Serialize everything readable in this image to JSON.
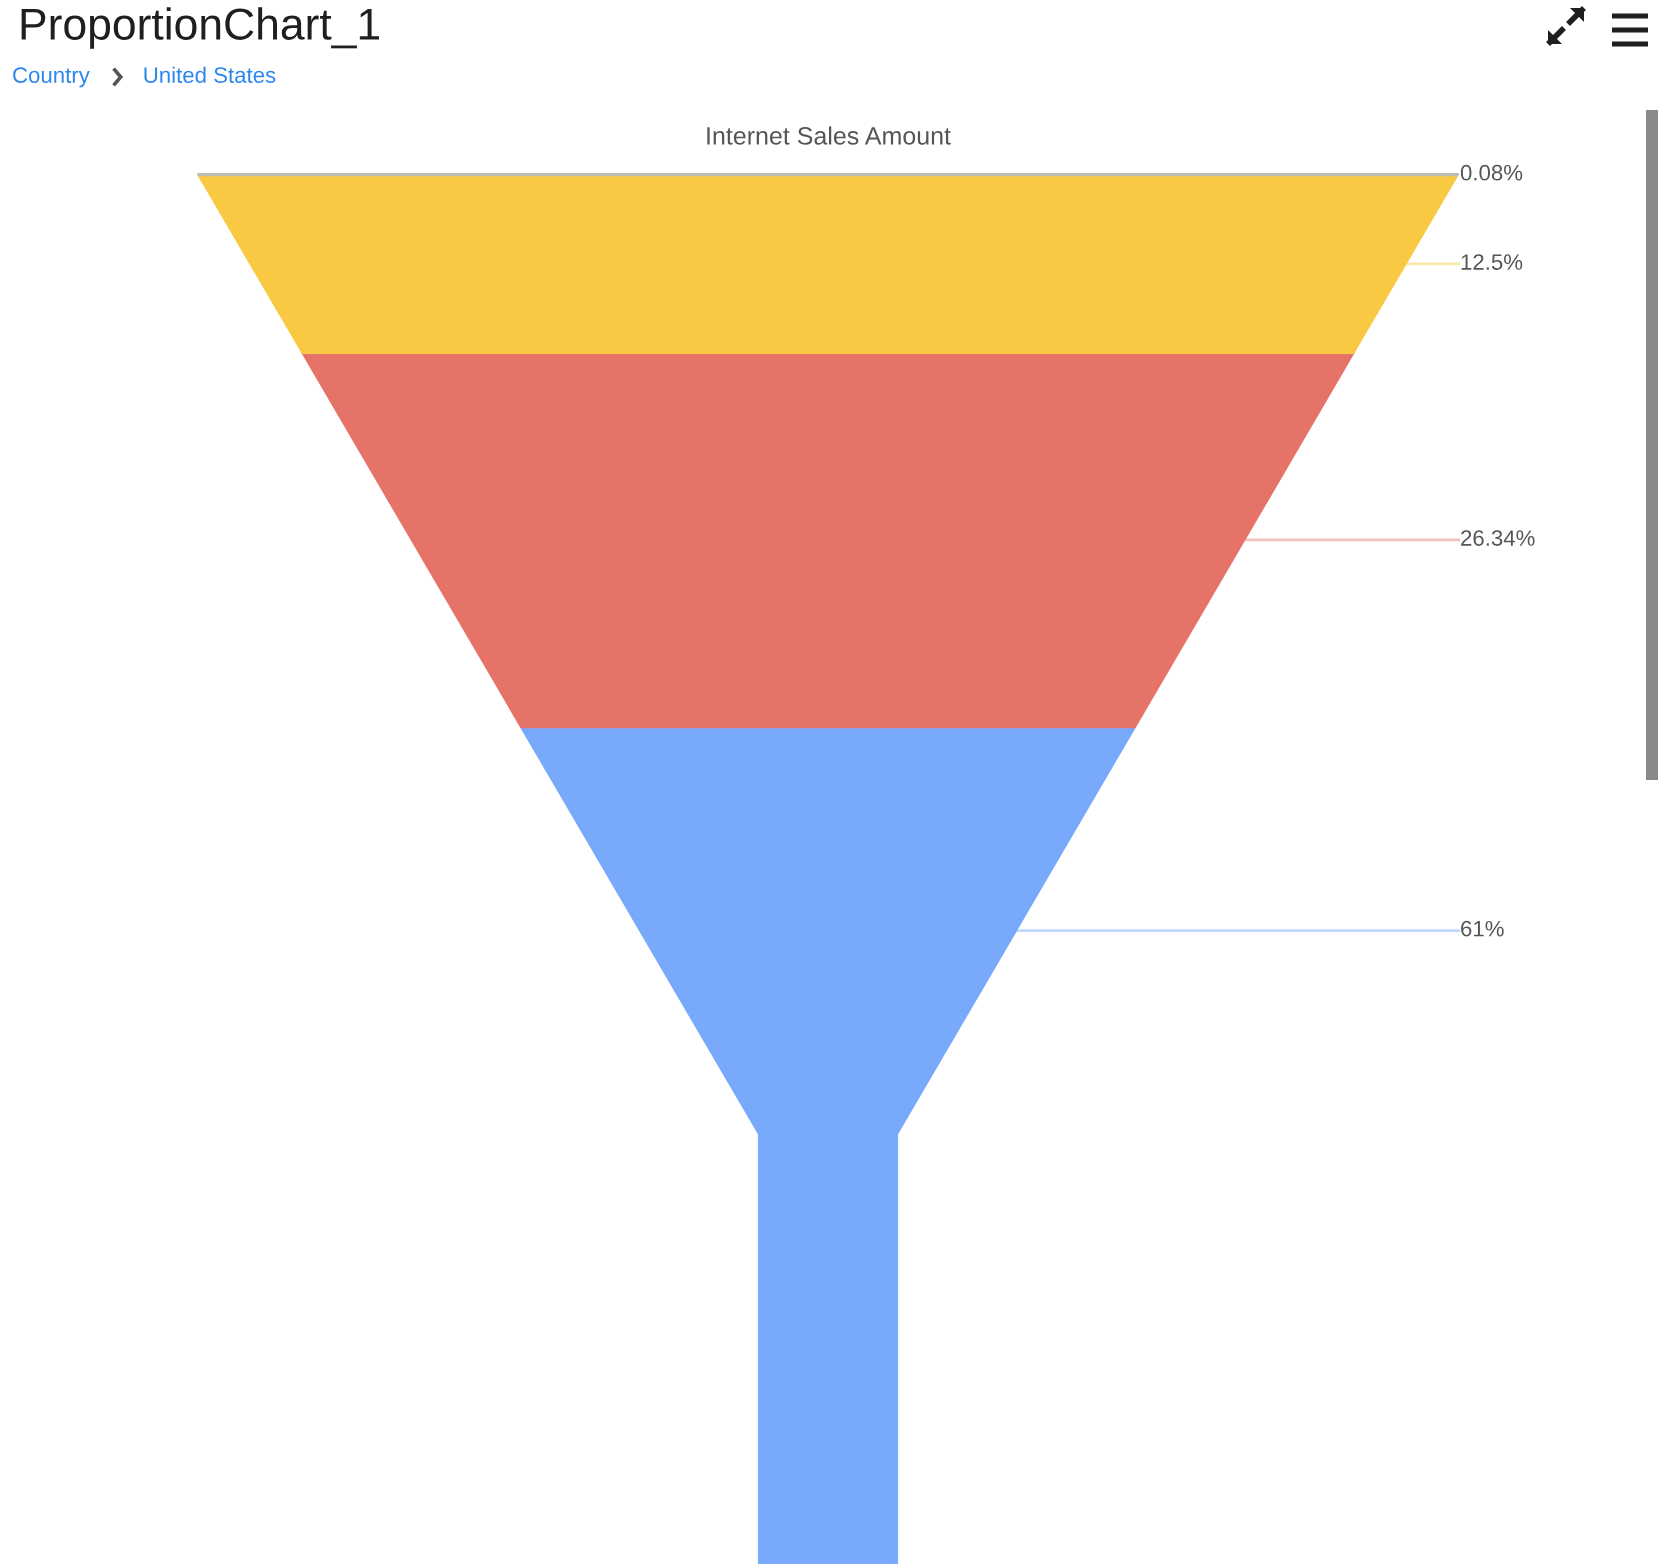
{
  "chart_data": {
    "type": "other",
    "title": "ProportionChart_1",
    "subtitle": "Internet Sales Amount",
    "annotations": [
      "Country",
      "United States"
    ],
    "values": [
      0.08,
      12.5,
      26.34,
      61
    ],
    "colors": [
      "#bdbdb0",
      "#f9c943",
      "#e67368",
      "#78a9fb"
    ],
    "value_labels": [
      "0.08%",
      "12.5%",
      "26.34%",
      "61%"
    ]
  }
}
